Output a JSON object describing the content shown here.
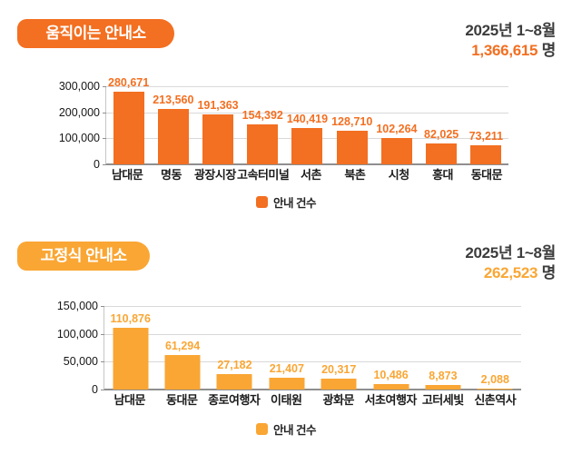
{
  "page": {
    "background": "#ffffff"
  },
  "sections": [
    {
      "badge": "움직이는 안내소",
      "period": "2025년 1~8월",
      "total": "1,366,615",
      "unit": "명",
      "accent": "#F36F21",
      "legend": "안내 건수"
    },
    {
      "badge": "고정식 안내소",
      "period": "2025년 1~8월",
      "total": "262,523",
      "unit": "명",
      "accent": "#FAA634",
      "legend": "안내 건수"
    }
  ],
  "chart_data": [
    {
      "type": "bar",
      "title": "움직이는 안내소",
      "categories": [
        "남대문",
        "명동",
        "광장시장",
        "고속터미널",
        "서촌",
        "북촌",
        "시청",
        "홍대",
        "동대문"
      ],
      "values": [
        280671,
        213560,
        191363,
        154392,
        140419,
        128710,
        102264,
        82025,
        73211
      ],
      "value_labels": [
        "280,671",
        "213,560",
        "191,363",
        "154,392",
        "140,419",
        "128,710",
        "102,264",
        "82,025",
        "73,211"
      ],
      "ylim": [
        0,
        300000
      ],
      "yticks": [
        {
          "value": 300000,
          "label": "300,000"
        },
        {
          "value": 200000,
          "label": "200,000"
        },
        {
          "value": 100000,
          "label": "100,000"
        },
        {
          "value": 0,
          "label": "0"
        }
      ],
      "grid": true,
      "legend": "안내 건수",
      "legend_position": "bottom",
      "bar_color": "#F36F21",
      "xlabel": "",
      "ylabel": ""
    },
    {
      "type": "bar",
      "title": "고정식 안내소",
      "categories": [
        "남대문",
        "동대문",
        "종로여행자",
        "이태원",
        "광화문",
        "서초여행자",
        "고터세빛",
        "신촌역사"
      ],
      "values": [
        110876,
        61294,
        27182,
        21407,
        20317,
        10486,
        8873,
        2088
      ],
      "value_labels": [
        "110,876",
        "61,294",
        "27,182",
        "21,407",
        "20,317",
        "10,486",
        "8,873",
        "2,088"
      ],
      "ylim": [
        0,
        150000
      ],
      "yticks": [
        {
          "value": 150000,
          "label": "150,000"
        },
        {
          "value": 100000,
          "label": "100,000"
        },
        {
          "value": 50000,
          "label": "50,000"
        },
        {
          "value": 0,
          "label": "0"
        }
      ],
      "grid": true,
      "legend": "안내 건수",
      "legend_position": "bottom",
      "bar_color": "#FAA634",
      "xlabel": "",
      "ylabel": ""
    }
  ]
}
